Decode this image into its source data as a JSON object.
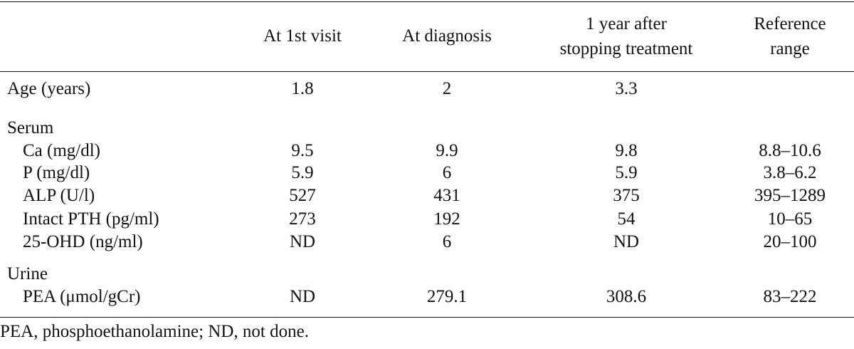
{
  "table": {
    "headers": {
      "col1": "At 1st visit",
      "col2": "At diagnosis",
      "col3_line1": "1 year after",
      "col3_line2": "stopping treatment",
      "col4_line1": "Reference",
      "col4_line2": "range"
    },
    "age_row": {
      "label": "Age (years)",
      "values": [
        "1.8",
        "2",
        "3.3",
        ""
      ]
    },
    "serum": {
      "section_label": "Serum",
      "rows": [
        {
          "label": "Ca (mg/dl)",
          "values": [
            "9.5",
            "9.9",
            "9.8",
            "8.8–10.6"
          ]
        },
        {
          "label": "P (mg/dl)",
          "values": [
            "5.9",
            "6",
            "5.9",
            "3.8–6.2"
          ]
        },
        {
          "label": "ALP (U/l)",
          "values": [
            "527",
            "431",
            "375",
            "395–1289"
          ]
        },
        {
          "label": "Intact PTH (pg/ml)",
          "values": [
            "273",
            "192",
            "54",
            "10–65"
          ]
        },
        {
          "label": "25-OHD (ng/ml)",
          "values": [
            "ND",
            "6",
            "ND",
            "20–100"
          ]
        }
      ]
    },
    "urine": {
      "section_label": "Urine",
      "rows": [
        {
          "label": "PEA (μmol/gCr)",
          "values": [
            "ND",
            "279.1",
            "308.6",
            "83–222"
          ]
        }
      ]
    }
  },
  "footnote": "PEA, phosphoethanolamine; ND, not done."
}
